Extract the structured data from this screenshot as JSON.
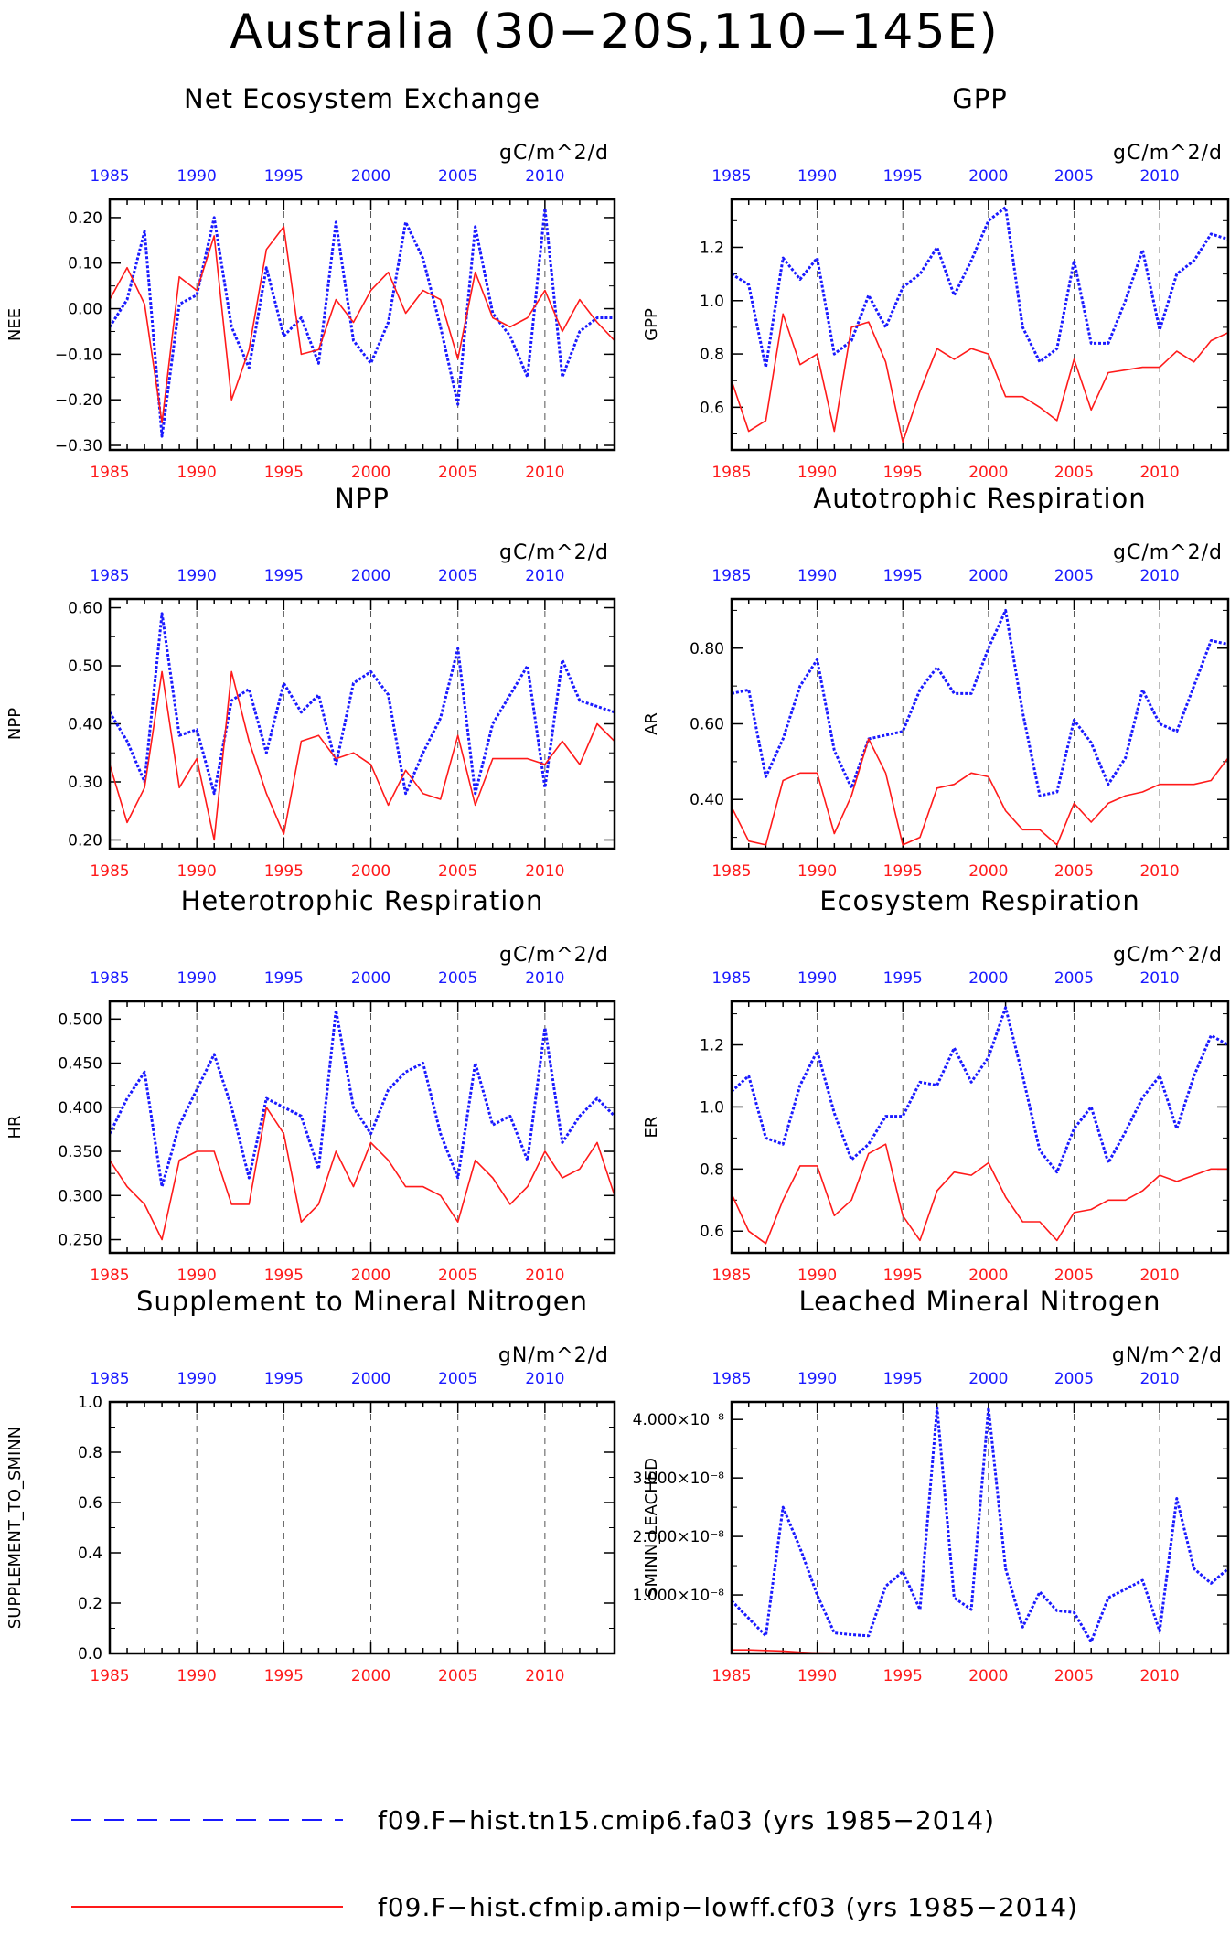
{
  "figure": {
    "title": "Australia (30−20S,110−145E)",
    "colors": {
      "blue": "#1a1aff",
      "red": "#ff1a1a"
    }
  },
  "legend": {
    "entries": [
      {
        "label": "f09.F−hist.tn15.cmip6.fa03 (yrs 1985−2014)",
        "color": "#1a1aff",
        "style": "dashed"
      },
      {
        "label": "f09.F−hist.cfmip.amip−lowff.cf03 (yrs 1985−2014)",
        "color": "#ff1a1a",
        "style": "solid"
      }
    ]
  },
  "chart_data": [
    {
      "type": "line",
      "title": "Net Ecosystem Exchange",
      "units": "gC/m^2/d",
      "ylabel": "NEE",
      "xlim": [
        1985,
        2014
      ],
      "ylim": [
        -0.31,
        0.24
      ],
      "yticks": [
        -0.3,
        -0.2,
        -0.1,
        0.0,
        0.1,
        0.2
      ],
      "yticklabels": [
        "−0.30",
        "−0.20",
        "−0.10",
        "0.00",
        "0.10",
        "0.20"
      ],
      "xticks": [
        1985,
        1990,
        1995,
        2000,
        2005,
        2010
      ],
      "xticklabels": [
        "1985",
        "1990",
        "1995",
        "2000",
        "2005",
        "2010"
      ],
      "vlines": [
        1990,
        1995,
        2000,
        2005,
        2010
      ],
      "x": [
        1985,
        1986,
        1987,
        1988,
        1989,
        1990,
        1991,
        1992,
        1993,
        1994,
        1995,
        1996,
        1997,
        1998,
        1999,
        2000,
        2001,
        2002,
        2003,
        2004,
        2005,
        2006,
        2007,
        2008,
        2009,
        2010,
        2011,
        2012,
        2013,
        2014
      ],
      "series": [
        {
          "color": "blue",
          "style": "dashed",
          "values": [
            -0.04,
            0.02,
            0.17,
            -0.28,
            0.01,
            0.03,
            0.2,
            -0.04,
            -0.13,
            0.09,
            -0.06,
            -0.02,
            -0.12,
            0.19,
            -0.07,
            -0.12,
            -0.03,
            0.19,
            0.11,
            -0.04,
            -0.21,
            0.18,
            -0.01,
            -0.06,
            -0.15,
            0.22,
            -0.15,
            -0.05,
            -0.02,
            -0.02
          ]
        },
        {
          "color": "red",
          "style": "solid",
          "values": [
            0.02,
            0.09,
            0.01,
            -0.25,
            0.07,
            0.04,
            0.16,
            -0.2,
            -0.09,
            0.13,
            0.18,
            -0.1,
            -0.09,
            0.02,
            -0.03,
            0.04,
            0.08,
            -0.01,
            0.04,
            0.02,
            -0.11,
            0.08,
            -0.02,
            -0.04,
            -0.02,
            0.04,
            -0.05,
            0.02,
            -0.03,
            -0.07
          ]
        }
      ]
    },
    {
      "type": "line",
      "title": "GPP",
      "units": "gC/m^2/d",
      "ylabel": "GPP",
      "xlim": [
        1985,
        2014
      ],
      "ylim": [
        0.44,
        1.38
      ],
      "yticks": [
        0.6,
        0.8,
        1.0,
        1.2
      ],
      "yticklabels": [
        "0.6",
        "0.8",
        "1.0",
        "1.2"
      ],
      "xticks": [
        1985,
        1990,
        1995,
        2000,
        2005,
        2010
      ],
      "xticklabels": [
        "1985",
        "1990",
        "1995",
        "2000",
        "2005",
        "2010"
      ],
      "vlines": [
        1990,
        1995,
        2000,
        2005,
        2010
      ],
      "x": [
        1985,
        1986,
        1987,
        1988,
        1989,
        1990,
        1991,
        1992,
        1993,
        1994,
        1995,
        1996,
        1997,
        1998,
        1999,
        2000,
        2001,
        2002,
        2003,
        2004,
        2005,
        2006,
        2007,
        2008,
        2009,
        2010,
        2011,
        2012,
        2013,
        2014
      ],
      "series": [
        {
          "color": "blue",
          "style": "dashed",
          "values": [
            1.1,
            1.06,
            0.75,
            1.16,
            1.08,
            1.16,
            0.8,
            0.85,
            1.02,
            0.9,
            1.05,
            1.1,
            1.2,
            1.02,
            1.15,
            1.3,
            1.35,
            0.9,
            0.77,
            0.82,
            1.15,
            0.84,
            0.84,
            1.0,
            1.19,
            0.89,
            1.1,
            1.15,
            1.25,
            1.23
          ]
        },
        {
          "color": "red",
          "style": "solid",
          "values": [
            0.7,
            0.51,
            0.55,
            0.95,
            0.76,
            0.8,
            0.51,
            0.9,
            0.92,
            0.77,
            0.47,
            0.66,
            0.82,
            0.78,
            0.82,
            0.8,
            0.64,
            0.64,
            0.6,
            0.55,
            0.78,
            0.59,
            0.73,
            0.74,
            0.75,
            0.75,
            0.81,
            0.77,
            0.85,
            0.88
          ]
        }
      ]
    },
    {
      "type": "line",
      "title": "NPP",
      "units": "gC/m^2/d",
      "ylabel": "NPP",
      "xlim": [
        1985,
        2014
      ],
      "ylim": [
        0.185,
        0.615
      ],
      "yticks": [
        0.2,
        0.3,
        0.4,
        0.5,
        0.6
      ],
      "yticklabels": [
        "0.20",
        "0.30",
        "0.40",
        "0.50",
        "0.60"
      ],
      "xticks": [
        1985,
        1990,
        1995,
        2000,
        2005,
        2010
      ],
      "xticklabels": [
        "1985",
        "1990",
        "1995",
        "2000",
        "2005",
        "2010"
      ],
      "vlines": [
        1990,
        1995,
        2000,
        2005,
        2010
      ],
      "x": [
        1985,
        1986,
        1987,
        1988,
        1989,
        1990,
        1991,
        1992,
        1993,
        1994,
        1995,
        1996,
        1997,
        1998,
        1999,
        2000,
        2001,
        2002,
        2003,
        2004,
        2005,
        2006,
        2007,
        2008,
        2009,
        2010,
        2011,
        2012,
        2013,
        2014
      ],
      "series": [
        {
          "color": "blue",
          "style": "dashed",
          "values": [
            0.42,
            0.37,
            0.3,
            0.59,
            0.38,
            0.39,
            0.28,
            0.44,
            0.46,
            0.35,
            0.47,
            0.42,
            0.45,
            0.33,
            0.47,
            0.49,
            0.45,
            0.28,
            0.35,
            0.41,
            0.53,
            0.28,
            0.4,
            0.45,
            0.5,
            0.29,
            0.51,
            0.44,
            0.43,
            0.42
          ]
        },
        {
          "color": "red",
          "style": "solid",
          "values": [
            0.33,
            0.23,
            0.29,
            0.49,
            0.29,
            0.34,
            0.2,
            0.49,
            0.37,
            0.28,
            0.21,
            0.37,
            0.38,
            0.34,
            0.35,
            0.33,
            0.26,
            0.32,
            0.28,
            0.27,
            0.38,
            0.26,
            0.34,
            0.34,
            0.34,
            0.33,
            0.37,
            0.33,
            0.4,
            0.37
          ]
        }
      ]
    },
    {
      "type": "line",
      "title": "Autotrophic Respiration",
      "units": "gC/m^2/d",
      "ylabel": "AR",
      "xlim": [
        1985,
        2014
      ],
      "ylim": [
        0.27,
        0.93
      ],
      "yticks": [
        0.4,
        0.6,
        0.8
      ],
      "yticklabels": [
        "0.40",
        "0.60",
        "0.80"
      ],
      "xticks": [
        1985,
        1990,
        1995,
        2000,
        2005,
        2010
      ],
      "xticklabels": [
        "1985",
        "1990",
        "1995",
        "2000",
        "2005",
        "2010"
      ],
      "vlines": [
        1990,
        1995,
        2000,
        2005,
        2010
      ],
      "x": [
        1985,
        1986,
        1987,
        1988,
        1989,
        1990,
        1991,
        1992,
        1993,
        1994,
        1995,
        1996,
        1997,
        1998,
        1999,
        2000,
        2001,
        2002,
        2003,
        2004,
        2005,
        2006,
        2007,
        2008,
        2009,
        2010,
        2011,
        2012,
        2013,
        2014
      ],
      "series": [
        {
          "color": "blue",
          "style": "dashed",
          "values": [
            0.68,
            0.69,
            0.46,
            0.56,
            0.7,
            0.77,
            0.53,
            0.43,
            0.56,
            0.57,
            0.58,
            0.69,
            0.75,
            0.68,
            0.68,
            0.8,
            0.9,
            0.63,
            0.41,
            0.42,
            0.61,
            0.55,
            0.44,
            0.51,
            0.69,
            0.6,
            0.58,
            0.7,
            0.82,
            0.81
          ]
        },
        {
          "color": "red",
          "style": "solid",
          "values": [
            0.38,
            0.29,
            0.28,
            0.45,
            0.47,
            0.47,
            0.31,
            0.41,
            0.56,
            0.47,
            0.28,
            0.3,
            0.43,
            0.44,
            0.47,
            0.46,
            0.37,
            0.32,
            0.32,
            0.28,
            0.39,
            0.34,
            0.39,
            0.41,
            0.42,
            0.44,
            0.44,
            0.44,
            0.45,
            0.51
          ]
        }
      ]
    },
    {
      "type": "line",
      "title": "Heterotrophic Respiration",
      "units": "gC/m^2/d",
      "ylabel": "HR",
      "xlim": [
        1985,
        2014
      ],
      "ylim": [
        0.235,
        0.52
      ],
      "yticks": [
        0.25,
        0.3,
        0.35,
        0.4,
        0.45,
        0.5
      ],
      "yticklabels": [
        "0.250",
        "0.300",
        "0.350",
        "0.400",
        "0.450",
        "0.500"
      ],
      "xticks": [
        1985,
        1990,
        1995,
        2000,
        2005,
        2010
      ],
      "xticklabels": [
        "1985",
        "1990",
        "1995",
        "2000",
        "2005",
        "2010"
      ],
      "vlines": [
        1990,
        1995,
        2000,
        2005,
        2010
      ],
      "x": [
        1985,
        1986,
        1987,
        1988,
        1989,
        1990,
        1991,
        1992,
        1993,
        1994,
        1995,
        1996,
        1997,
        1998,
        1999,
        2000,
        2001,
        2002,
        2003,
        2004,
        2005,
        2006,
        2007,
        2008,
        2009,
        2010,
        2011,
        2012,
        2013,
        2014
      ],
      "series": [
        {
          "color": "blue",
          "style": "dashed",
          "values": [
            0.37,
            0.41,
            0.44,
            0.31,
            0.38,
            0.42,
            0.46,
            0.4,
            0.32,
            0.41,
            0.4,
            0.39,
            0.33,
            0.51,
            0.4,
            0.37,
            0.42,
            0.44,
            0.45,
            0.37,
            0.32,
            0.45,
            0.38,
            0.39,
            0.34,
            0.49,
            0.36,
            0.39,
            0.41,
            0.39
          ]
        },
        {
          "color": "red",
          "style": "solid",
          "values": [
            0.34,
            0.31,
            0.29,
            0.25,
            0.34,
            0.35,
            0.35,
            0.29,
            0.29,
            0.4,
            0.37,
            0.27,
            0.29,
            0.35,
            0.31,
            0.36,
            0.34,
            0.31,
            0.31,
            0.3,
            0.27,
            0.34,
            0.32,
            0.29,
            0.31,
            0.35,
            0.32,
            0.33,
            0.36,
            0.3
          ]
        }
      ]
    },
    {
      "type": "line",
      "title": "Ecosystem Respiration",
      "units": "gC/m^2/d",
      "ylabel": "ER",
      "xlim": [
        1985,
        2014
      ],
      "ylim": [
        0.53,
        1.34
      ],
      "yticks": [
        0.6,
        0.8,
        1.0,
        1.2
      ],
      "yticklabels": [
        "0.6",
        "0.8",
        "1.0",
        "1.2"
      ],
      "xticks": [
        1985,
        1990,
        1995,
        2000,
        2005,
        2010
      ],
      "xticklabels": [
        "1985",
        "1990",
        "1995",
        "2000",
        "2005",
        "2010"
      ],
      "vlines": [
        1990,
        1995,
        2000,
        2005,
        2010
      ],
      "x": [
        1985,
        1986,
        1987,
        1988,
        1989,
        1990,
        1991,
        1992,
        1993,
        1994,
        1995,
        1996,
        1997,
        1998,
        1999,
        2000,
        2001,
        2002,
        2003,
        2004,
        2005,
        2006,
        2007,
        2008,
        2009,
        2010,
        2011,
        2012,
        2013,
        2014
      ],
      "series": [
        {
          "color": "blue",
          "style": "dashed",
          "values": [
            1.05,
            1.1,
            0.9,
            0.88,
            1.07,
            1.18,
            0.98,
            0.83,
            0.88,
            0.97,
            0.97,
            1.08,
            1.07,
            1.19,
            1.08,
            1.16,
            1.32,
            1.1,
            0.86,
            0.79,
            0.93,
            1.0,
            0.82,
            0.92,
            1.03,
            1.1,
            0.93,
            1.1,
            1.23,
            1.2
          ]
        },
        {
          "color": "red",
          "style": "solid",
          "values": [
            0.72,
            0.6,
            0.56,
            0.7,
            0.81,
            0.81,
            0.65,
            0.7,
            0.85,
            0.88,
            0.65,
            0.57,
            0.73,
            0.79,
            0.78,
            0.82,
            0.71,
            0.63,
            0.63,
            0.57,
            0.66,
            0.67,
            0.7,
            0.7,
            0.73,
            0.78,
            0.76,
            0.78,
            0.8,
            0.8
          ]
        }
      ]
    },
    {
      "type": "line",
      "title": "Supplement to Mineral Nitrogen",
      "units": "gN/m^2/d",
      "ylabel": "SUPPLEMENT_TO_SMINN",
      "xlim": [
        1985,
        2014
      ],
      "ylim": [
        0.0,
        1.0
      ],
      "yticks": [
        0.0,
        0.2,
        0.4,
        0.6,
        0.8,
        1.0
      ],
      "yticklabels": [
        "0.0",
        "0.2",
        "0.4",
        "0.6",
        "0.8",
        "1.0"
      ],
      "xticks": [
        1985,
        1990,
        1995,
        2000,
        2005,
        2010
      ],
      "xticklabels": [
        "1985",
        "1990",
        "1995",
        "2000",
        "2005",
        "2010"
      ],
      "vlines": [
        1990,
        1995,
        2000,
        2005,
        2010
      ],
      "x": [],
      "series": []
    },
    {
      "type": "line",
      "title": "Leached Mineral Nitrogen",
      "units": "gN/m^2/d",
      "ylabel": "SMINN_LEACHED",
      "xlim": [
        1985,
        2014
      ],
      "ylim": [
        0.0,
        4.3e-08
      ],
      "yticks": [
        1e-08,
        2e-08,
        3e-08,
        4e-08
      ],
      "yticklabels": [
        "1.000×10⁻⁸",
        "2.000×10⁻⁸",
        "3.000×10⁻⁸",
        "4.000×10⁻⁸"
      ],
      "xticks": [
        1985,
        1990,
        1995,
        2000,
        2005,
        2010
      ],
      "xticklabels": [
        "1985",
        "1990",
        "1995",
        "2000",
        "2005",
        "2010"
      ],
      "vlines": [
        1990,
        1995,
        2000,
        2005,
        2010
      ],
      "x": [
        1985,
        1986,
        1987,
        1988,
        1989,
        1990,
        1991,
        1992,
        1993,
        1994,
        1995,
        1996,
        1997,
        1998,
        1999,
        2000,
        2001,
        2002,
        2003,
        2004,
        2005,
        2006,
        2007,
        2008,
        2009,
        2010,
        2011,
        2012,
        2013,
        2014
      ],
      "series": [
        {
          "color": "blue",
          "style": "dashed",
          "values": [
            9e-09,
            6e-09,
            3e-09,
            2.5e-08,
            1.8e-08,
            1e-08,
            3.5e-09,
            3.2e-09,
            3e-09,
            1.15e-08,
            1.4e-08,
            7.5e-09,
            4.2e-08,
            9.5e-09,
            7.5e-09,
            4.2e-08,
            1.45e-08,
            4.5e-09,
            1.05e-08,
            7.3e-09,
            7e-09,
            2e-09,
            9.5e-09,
            1.1e-08,
            1.25e-08,
            3.8e-09,
            2.65e-08,
            1.45e-08,
            1.2e-08,
            1.45e-08
          ]
        },
        {
          "color": "red",
          "style": "solid",
          "values": [
            6e-10,
            6e-10,
            5e-10,
            4e-10,
            2e-10,
            1e-10,
            5e-11,
            0,
            0,
            0,
            0,
            0,
            0,
            0,
            0,
            0,
            0,
            0,
            0,
            0,
            0,
            0,
            0,
            0,
            0,
            0,
            0,
            0,
            0,
            0
          ]
        }
      ]
    }
  ]
}
